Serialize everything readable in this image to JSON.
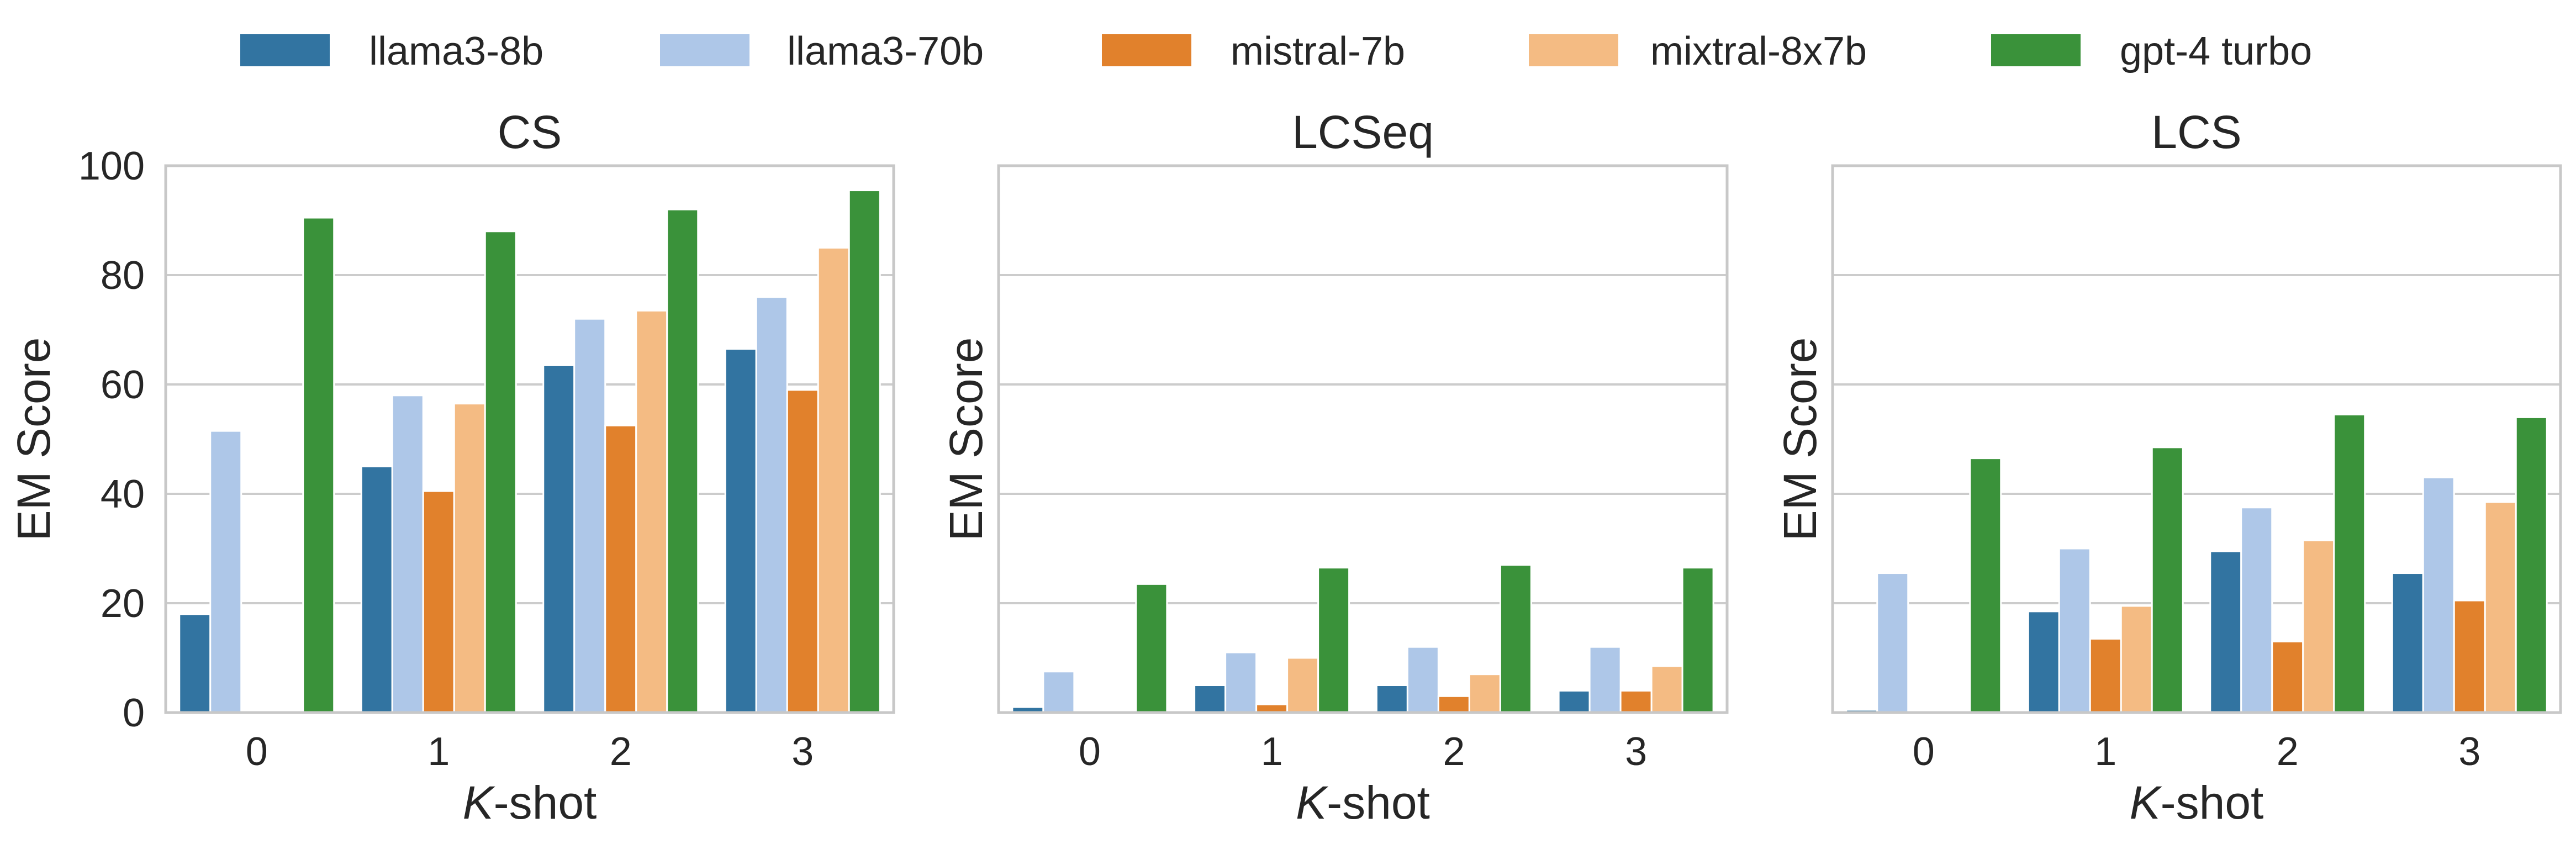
{
  "legend": [
    {
      "name": "llama3-8b",
      "color": "#3274a1"
    },
    {
      "name": "llama3-70b",
      "color": "#aec7e8"
    },
    {
      "name": "mistral-7b",
      "color": "#e1812c"
    },
    {
      "name": "mixtral-8x7b",
      "color": "#f4bb83"
    },
    {
      "name": "gpt-4 turbo",
      "color": "#3a923a"
    }
  ],
  "chart_data": [
    {
      "type": "bar",
      "title": "CS",
      "xlabel_italic": "K",
      "xlabel_rest": "-shot",
      "ylabel": "EM Score",
      "ylim": [
        0,
        100
      ],
      "yticks": [
        0,
        20,
        40,
        60,
        80,
        100
      ],
      "show_ytick_labels": true,
      "grid": true,
      "categories": [
        "0",
        "1",
        "2",
        "3"
      ],
      "series": [
        {
          "name": "llama3-8b",
          "values": [
            18,
            45,
            63.5,
            66.5
          ]
        },
        {
          "name": "llama3-70b",
          "values": [
            51.5,
            58,
            72,
            76
          ]
        },
        {
          "name": "mistral-7b",
          "values": [
            0,
            40.5,
            52.5,
            59
          ]
        },
        {
          "name": "mixtral-8x7b",
          "values": [
            0,
            56.5,
            73.5,
            85
          ]
        },
        {
          "name": "gpt-4 turbo",
          "values": [
            90.5,
            88,
            92,
            95.5
          ]
        }
      ]
    },
    {
      "type": "bar",
      "title": "LCSeq",
      "xlabel_italic": "K",
      "xlabel_rest": "-shot",
      "ylabel": "EM Score",
      "ylim": [
        0,
        100
      ],
      "yticks": [
        0,
        20,
        40,
        60,
        80,
        100
      ],
      "show_ytick_labels": false,
      "grid": true,
      "categories": [
        "0",
        "1",
        "2",
        "3"
      ],
      "series": [
        {
          "name": "llama3-8b",
          "values": [
            1,
            5,
            5,
            4
          ]
        },
        {
          "name": "llama3-70b",
          "values": [
            7.5,
            11,
            12,
            12
          ]
        },
        {
          "name": "mistral-7b",
          "values": [
            0,
            1.5,
            3,
            4
          ]
        },
        {
          "name": "mixtral-8x7b",
          "values": [
            0,
            10,
            7,
            8.5
          ]
        },
        {
          "name": "gpt-4 turbo",
          "values": [
            23.5,
            26.5,
            27,
            26.5
          ]
        }
      ]
    },
    {
      "type": "bar",
      "title": "LCS",
      "xlabel_italic": "K",
      "xlabel_rest": "-shot",
      "ylabel": "EM Score",
      "ylim": [
        0,
        100
      ],
      "yticks": [
        0,
        20,
        40,
        60,
        80,
        100
      ],
      "show_ytick_labels": false,
      "grid": true,
      "categories": [
        "0",
        "1",
        "2",
        "3"
      ],
      "series": [
        {
          "name": "llama3-8b",
          "values": [
            0.5,
            18.5,
            29.5,
            25.5
          ]
        },
        {
          "name": "llama3-70b",
          "values": [
            25.5,
            30,
            37.5,
            43
          ]
        },
        {
          "name": "mistral-7b",
          "values": [
            0,
            13.5,
            13,
            20.5
          ]
        },
        {
          "name": "mixtral-8x7b",
          "values": [
            0,
            19.5,
            31.5,
            38.5
          ]
        },
        {
          "name": "gpt-4 turbo",
          "values": [
            46.5,
            48.5,
            54.5,
            54
          ]
        }
      ]
    }
  ]
}
